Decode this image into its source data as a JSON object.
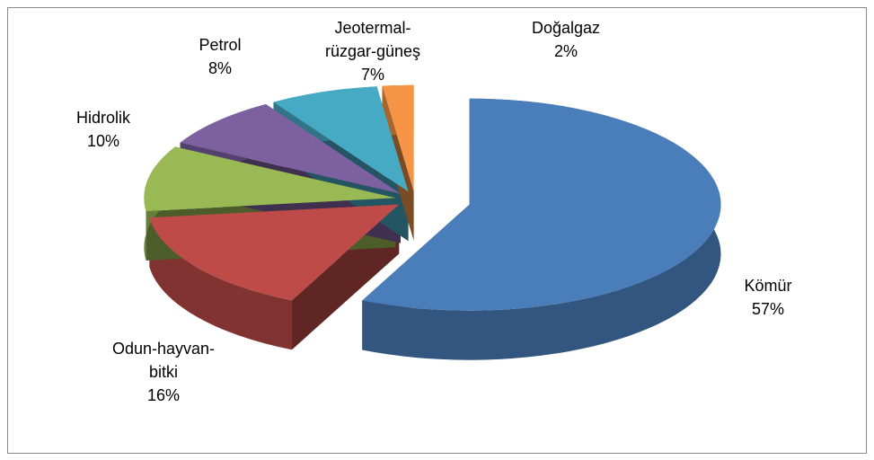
{
  "chart_data": {
    "type": "pie",
    "categories": [
      "Kömür",
      "Odun-hayvan-bitki",
      "Hidrolik",
      "Petrol",
      "Jeotermal-rüzgar-güneş",
      "Doğalgaz"
    ],
    "values": [
      57,
      16,
      10,
      8,
      7,
      2
    ],
    "value_labels": [
      "57%",
      "16%",
      "10%",
      "8%",
      "7%",
      "2%"
    ],
    "colors": [
      "#4a7ebb",
      "#be4b48",
      "#98b954",
      "#7d60a0",
      "#46aac5",
      "#f69546"
    ]
  }
}
